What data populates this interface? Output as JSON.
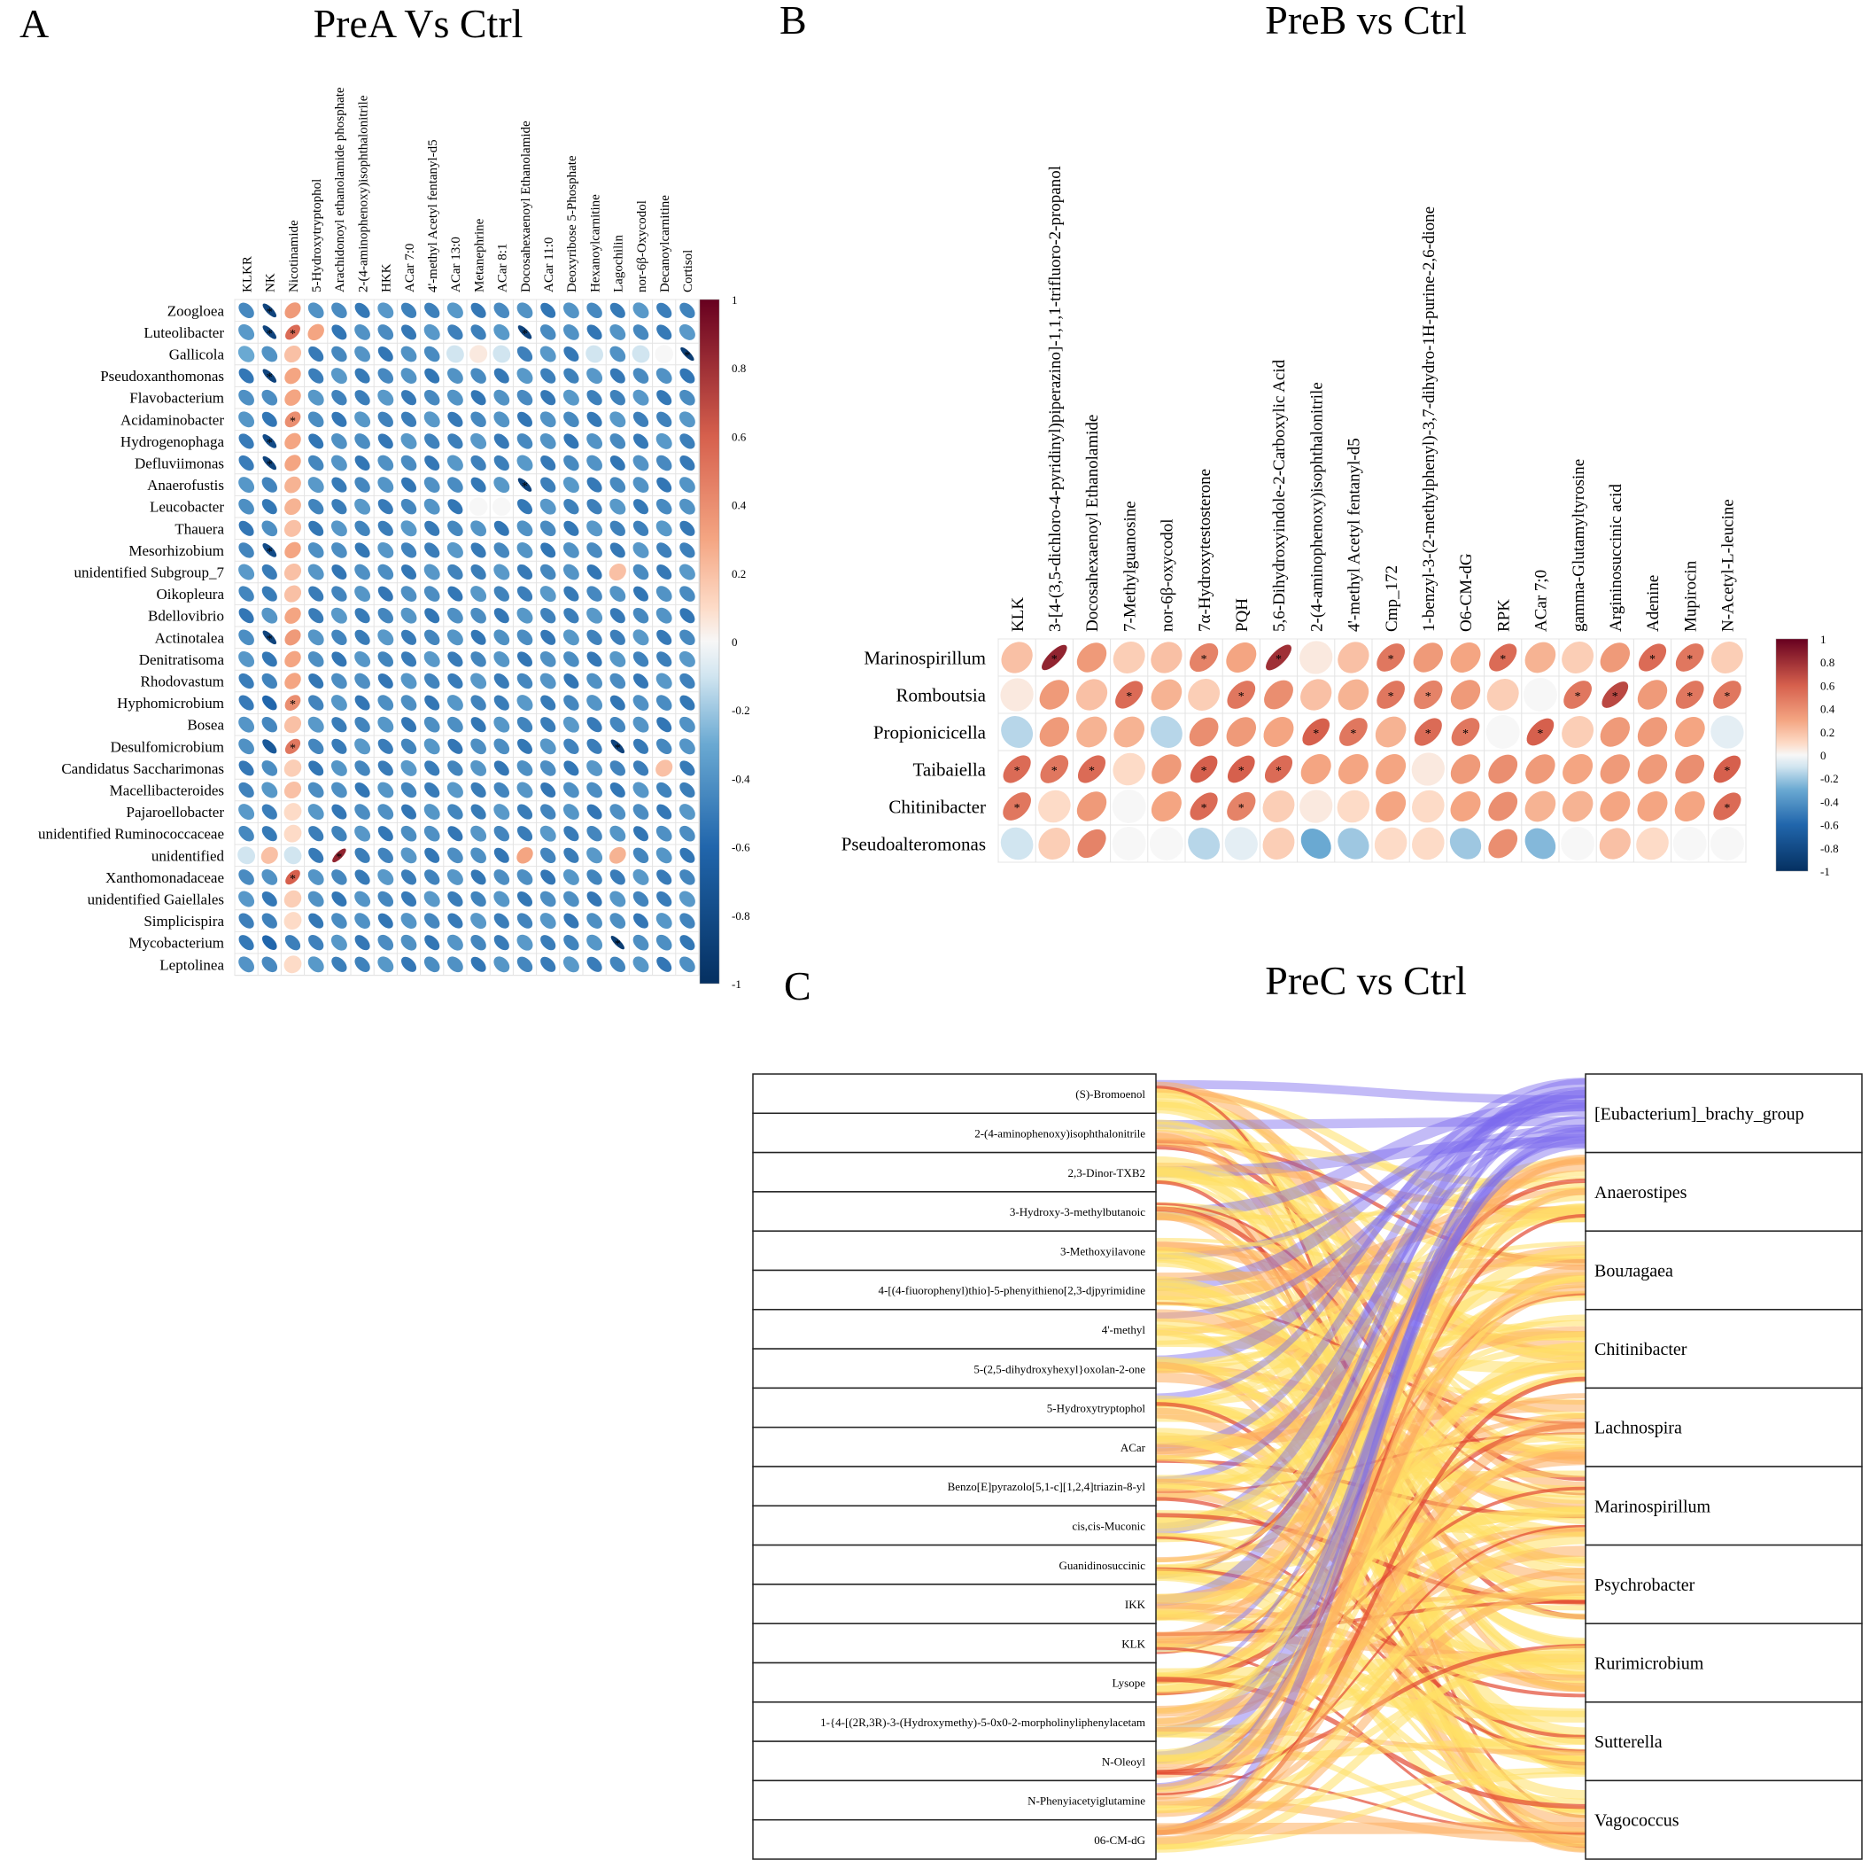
{
  "panels": {
    "A": {
      "letter": "A",
      "title": "PreA Vs Ctrl"
    },
    "B": {
      "letter": "B",
      "title": "PreB vs Ctrl"
    },
    "C": {
      "letter": "C",
      "title": "PreC vs Ctrl"
    }
  },
  "colors": {
    "neg": "#2166ac",
    "zero": "#f7f7f7",
    "pos": "#b2182b"
  },
  "chart_data": [
    {
      "panel": "A",
      "type": "heatmap",
      "title": "PreA Vs Ctrl",
      "columns": [
        "KLKR",
        "NK",
        "Nicotinamide",
        "5-Hydroxytryptophol",
        "Arachidonoyl ethanolamide phosphate",
        "2-(4-aminophenoxy)isophthalonitrile",
        "HKK",
        "ACar 7:0",
        "4'-methyl Acetyl fentanyl-d5",
        "ACar 13:0",
        "Metanephrine",
        "ACar 8:1",
        "Docosahexaenoyl Ethanolamide",
        "ACar 11:0",
        "Deoxyribose 5-Phosphate",
        "Hexanoylcarnitine",
        "Lagochilin",
        "nor-6β-Oxycodol",
        "Decanoylcarnitine",
        "Cortisol"
      ],
      "rows": [
        "Zoogloea",
        "Luteolibacter",
        "Gallicola",
        "Pseudoxanthomonas",
        "Flavobacterium",
        "Acidaminobacter",
        "Hydrogenophaga",
        "Defluviimonas",
        "Anaerofustis",
        "Leucobacter",
        "Thauera",
        "Mesorhizobium",
        "unidentified Subgroup_7",
        "Oikopleura",
        "Bdellovibrio",
        "Actinotalea",
        "Denitratisoma",
        "Rhodovastum",
        "Hyphomicrobium",
        "Bosea",
        "Desulfomicrobium",
        "Candidatus Saccharimonas",
        "Macellibacteroides",
        "Pajaroellobacter",
        "unidentified Ruminococcaceae",
        "unidentified",
        "Xanthomonadaceae",
        "unidentified Gaiellales",
        "Simplicispira",
        "Mycobacterium",
        "Leptolinea"
      ],
      "value_range": [
        -1,
        1
      ],
      "default_value": -0.45,
      "cells": [
        [
          0,
          1,
          -0.85,
          true
        ],
        [
          0,
          2,
          0.35
        ],
        [
          1,
          1,
          -0.85,
          true
        ],
        [
          1,
          2,
          0.55,
          true
        ],
        [
          1,
          3,
          0.3
        ],
        [
          1,
          12,
          -0.85,
          true
        ],
        [
          2,
          0,
          -0.3
        ],
        [
          2,
          1,
          -0.4
        ],
        [
          2,
          2,
          0.2
        ],
        [
          2,
          9,
          -0.1
        ],
        [
          2,
          10,
          0.05
        ],
        [
          2,
          11,
          -0.1
        ],
        [
          2,
          15,
          -0.1
        ],
        [
          2,
          17,
          -0.1
        ],
        [
          2,
          18,
          0.0
        ],
        [
          2,
          19,
          -0.9,
          true
        ],
        [
          3,
          1,
          -0.85,
          true
        ],
        [
          3,
          2,
          0.3
        ],
        [
          4,
          2,
          0.3
        ],
        [
          5,
          2,
          0.4,
          true
        ],
        [
          6,
          1,
          -0.8,
          true
        ],
        [
          6,
          2,
          0.3
        ],
        [
          7,
          1,
          -0.85,
          true
        ],
        [
          7,
          2,
          0.3
        ],
        [
          8,
          2,
          0.25
        ],
        [
          8,
          12,
          -0.85,
          true
        ],
        [
          9,
          2,
          0.25
        ],
        [
          9,
          10,
          0.0
        ],
        [
          9,
          11,
          0.0
        ],
        [
          10,
          2,
          0.2
        ],
        [
          11,
          1,
          -0.8,
          true
        ],
        [
          11,
          2,
          0.3
        ],
        [
          12,
          2,
          0.2
        ],
        [
          12,
          16,
          0.2
        ],
        [
          13,
          2,
          0.2
        ],
        [
          14,
          2,
          0.3
        ],
        [
          15,
          1,
          -0.85,
          true
        ],
        [
          15,
          2,
          0.35
        ],
        [
          16,
          2,
          0.3
        ],
        [
          17,
          2,
          0.3
        ],
        [
          18,
          1,
          -0.6
        ],
        [
          18,
          2,
          0.4,
          true
        ],
        [
          19,
          2,
          0.2
        ],
        [
          20,
          1,
          -0.7
        ],
        [
          20,
          2,
          0.5,
          true
        ],
        [
          20,
          16,
          -0.85,
          true
        ],
        [
          21,
          2,
          0.15
        ],
        [
          21,
          18,
          0.2
        ],
        [
          22,
          2,
          0.2
        ],
        [
          23,
          2,
          0.1
        ],
        [
          24,
          2,
          0.1
        ],
        [
          25,
          0,
          -0.1
        ],
        [
          25,
          1,
          0.2
        ],
        [
          25,
          2,
          -0.1
        ],
        [
          25,
          4,
          0.85,
          true
        ],
        [
          25,
          12,
          0.3
        ],
        [
          25,
          16,
          0.25
        ],
        [
          26,
          2,
          0.6,
          true
        ],
        [
          27,
          2,
          0.15
        ],
        [
          28,
          2,
          0.1
        ],
        [
          29,
          1,
          -0.6
        ],
        [
          29,
          16,
          -0.9,
          true
        ],
        [
          30,
          2,
          0.1
        ]
      ]
    },
    {
      "panel": "B",
      "type": "heatmap",
      "title": "PreB vs Ctrl",
      "columns": [
        "KLK",
        "3-[4-(3,5-dichloro-4-pyridinyl)piperazino]-1,1,1-trifluoro-2-propanol",
        "Docosahexaenoyl Ethanolamide",
        "7-Methylguanosine",
        "nor-6β-oxycodol",
        "7α-Hydroxytestosterone",
        "PQH",
        "5,6-Dihydroxyindole-2-Carboxylic Acid",
        "2-(4-aminophenoxy)isophthalonitrile",
        "4'-methyl Acetyl fentanyl-d5",
        "Cmp_172",
        "1-benzyl-3-(2-methylphenyl)-3,7-dihydro-1H-purine-2,6-dione",
        "O6-CM-dG",
        "RPK",
        "ACar 7;0",
        "gamma-Glutamyltyrosine",
        "Argininosuccinic acid",
        "Adenine",
        "Mupirocin",
        "N-Acetyl-L-leucine"
      ],
      "rows": [
        "Marinospirillum",
        "Romboutsia",
        "Propionicicella",
        "Taibaiella",
        "Chitinibacter",
        "Pseudoalteromonas"
      ],
      "value_range": [
        -1,
        1
      ],
      "matrix": [
        [
          0.2,
          0.85,
          0.35,
          0.15,
          0.2,
          0.45,
          0.3,
          0.8,
          0.05,
          0.2,
          0.5,
          0.35,
          0.3,
          0.55,
          0.25,
          0.15,
          0.35,
          0.55,
          0.5,
          0.15
        ],
        [
          0.05,
          0.35,
          0.2,
          0.55,
          0.25,
          0.15,
          0.5,
          0.4,
          0.2,
          0.25,
          0.5,
          0.45,
          0.35,
          0.15,
          0.0,
          0.5,
          0.7,
          0.35,
          0.5,
          0.5
        ],
        [
          -0.15,
          0.35,
          0.25,
          0.25,
          -0.15,
          0.4,
          0.35,
          0.3,
          0.6,
          0.5,
          0.25,
          0.55,
          0.5,
          0.0,
          0.6,
          0.15,
          0.35,
          0.35,
          0.3,
          -0.05
        ],
        [
          0.55,
          0.5,
          0.55,
          0.1,
          0.35,
          0.6,
          0.6,
          0.55,
          0.3,
          0.3,
          0.3,
          0.05,
          0.35,
          0.4,
          0.35,
          0.3,
          0.35,
          0.35,
          0.4,
          0.6
        ],
        [
          0.5,
          0.1,
          0.35,
          0.0,
          0.3,
          0.55,
          0.45,
          0.15,
          0.05,
          0.1,
          0.3,
          0.1,
          0.3,
          0.4,
          0.25,
          0.25,
          0.3,
          0.3,
          0.3,
          0.55
        ],
        [
          -0.1,
          0.15,
          0.45,
          0.0,
          0.0,
          -0.15,
          -0.05,
          0.15,
          -0.3,
          -0.2,
          0.1,
          0.1,
          -0.2,
          0.4,
          -0.25,
          0.0,
          0.2,
          0.1,
          0.0,
          0.0
        ]
      ],
      "significant": [
        [
          0,
          1
        ],
        [
          0,
          5
        ],
        [
          0,
          7
        ],
        [
          0,
          10
        ],
        [
          0,
          13
        ],
        [
          0,
          17
        ],
        [
          0,
          18
        ],
        [
          1,
          3
        ],
        [
          1,
          6
        ],
        [
          1,
          10
        ],
        [
          1,
          11
        ],
        [
          1,
          15
        ],
        [
          1,
          16
        ],
        [
          1,
          18
        ],
        [
          1,
          19
        ],
        [
          2,
          8
        ],
        [
          2,
          9
        ],
        [
          2,
          11
        ],
        [
          2,
          12
        ],
        [
          2,
          14
        ],
        [
          3,
          0
        ],
        [
          3,
          1
        ],
        [
          3,
          2
        ],
        [
          3,
          5
        ],
        [
          3,
          6
        ],
        [
          3,
          7
        ],
        [
          3,
          19
        ],
        [
          4,
          0
        ],
        [
          4,
          5
        ],
        [
          4,
          6
        ],
        [
          4,
          19
        ]
      ]
    },
    {
      "panel": "C",
      "type": "sankey",
      "title": "PreC vs Ctrl",
      "metabolites": [
        "(S)-Bromoenol",
        "2-(4-aminophenoxy)isophthalonitrile",
        "2,3-Dinor-TXB2",
        "3-Hydroxy-3-methylbutanoic",
        "3-Methoxyilavone",
        "4-[(4-fiuorophenyl)thio]-5-phenyithieno[2,3-djpyrimidine",
        "4'-methyl",
        "5-(2,5-dihydroxyhexyl}oxolan-2-one",
        "5-Hydroxytryptophol",
        "ACar",
        "Benzo[E]pyrazolo[5,1-c][1,2,4]triazin-8-yl",
        "cis,cis-Muconic",
        "Guanidinosuccinic",
        "IKK",
        "KLK",
        "Lysope",
        "1-{4-[(2R,3R)-3-(Hydroxymethy)-5-0x0-2-morpholinyliphenylacetam",
        "N-Oleoyl",
        "N-Phenyiacetyiglutamine",
        "06-CM-dG"
      ],
      "genera": [
        "[Eubacterium]_brachy_group",
        "Anaerostipes",
        "Bouлagaea",
        "Chitinibacter",
        "Lachnospira",
        "Marinospirillum",
        "Psychrobacter",
        "Rurimicrobium",
        "Sutterella",
        "Vagococcus"
      ],
      "link_colors": {
        "negative": "#7b68ee",
        "positive_strong": "#e34a33",
        "positive_mid": "#fdae61",
        "positive_weak": "#ffe066"
      }
    }
  ]
}
